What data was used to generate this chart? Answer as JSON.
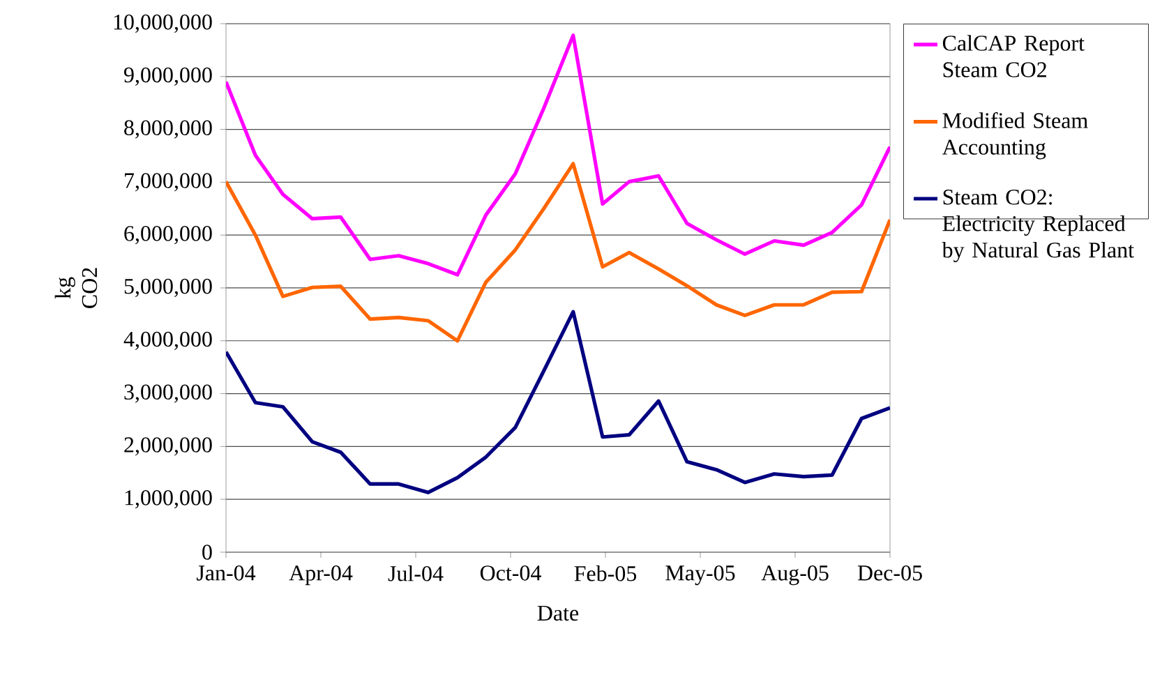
{
  "chart_data": {
    "type": "line",
    "xlabel": "Date",
    "ylabel": "kg CO2",
    "x": [
      "2004-01",
      "2004-02",
      "2004-03",
      "2004-04",
      "2004-05",
      "2004-06",
      "2004-07",
      "2004-08",
      "2004-09",
      "2004-10",
      "2004-11",
      "2004-12",
      "2005-01",
      "2005-02",
      "2005-03",
      "2005-04",
      "2005-05",
      "2005-06",
      "2005-07",
      "2005-08",
      "2005-09",
      "2005-10",
      "2005-11",
      "2005-12"
    ],
    "series": [
      {
        "name": "CalCAP Report Steam CO2",
        "color": "#ff00ff",
        "values": [
          8900000,
          7510000,
          6770000,
          6310000,
          6340000,
          5540000,
          5610000,
          5460000,
          5250000,
          6380000,
          7160000,
          8400000,
          9780000,
          6590000,
          7010000,
          7120000,
          6220000,
          5910000,
          5640000,
          5890000,
          5810000,
          6050000,
          6570000,
          7670000
        ]
      },
      {
        "name": "Modified Steam Accounting",
        "color": "#ff6600",
        "values": [
          7010000,
          6000000,
          4840000,
          5010000,
          5030000,
          4410000,
          4440000,
          4380000,
          4000000,
          5110000,
          5720000,
          6500000,
          7350000,
          5400000,
          5670000,
          5360000,
          5040000,
          4680000,
          4480000,
          4680000,
          4680000,
          4920000,
          4930000,
          6290000
        ]
      },
      {
        "name": "Steam CO2: Electricity Replaced by Natural Gas Plant",
        "color": "#000080",
        "values": [
          3790000,
          2830000,
          2750000,
          2090000,
          1890000,
          1290000,
          1290000,
          1130000,
          1410000,
          1800000,
          2360000,
          3430000,
          4550000,
          2180000,
          2220000,
          2860000,
          1710000,
          1560000,
          1320000,
          1480000,
          1430000,
          1460000,
          2530000,
          2730000
        ]
      }
    ],
    "xlim": [
      "2004-01",
      "2005-12"
    ],
    "xticks": [
      {
        "value": "2004-01-01",
        "label": "Jan-04"
      },
      {
        "value": "2004-04-10",
        "label": "Apr-04"
      },
      {
        "value": "2004-07-19",
        "label": "Jul-04"
      },
      {
        "value": "2004-10-27",
        "label": "Oct-04"
      },
      {
        "value": "2005-02-04",
        "label": "Feb-05"
      },
      {
        "value": "2005-05-15",
        "label": "May-05"
      },
      {
        "value": "2005-08-23",
        "label": "Aug-05"
      },
      {
        "value": "2005-12-01",
        "label": "Dec-05"
      }
    ],
    "ylim": [
      0,
      10000000
    ],
    "yticks": [
      {
        "value": 0,
        "label": "0"
      },
      {
        "value": 1000000,
        "label": "1,000,000"
      },
      {
        "value": 2000000,
        "label": "2,000,000"
      },
      {
        "value": 3000000,
        "label": "3,000,000"
      },
      {
        "value": 4000000,
        "label": "4,000,000"
      },
      {
        "value": 5000000,
        "label": "5,000,000"
      },
      {
        "value": 6000000,
        "label": "6,000,000"
      },
      {
        "value": 7000000,
        "label": "7,000,000"
      },
      {
        "value": 8000000,
        "label": "8,000,000"
      },
      {
        "value": 9000000,
        "label": "9,000,000"
      },
      {
        "value": 10000000,
        "label": "10,000,000"
      }
    ],
    "grid": "y",
    "legend": "right",
    "marker": "none",
    "line_style": "solid"
  }
}
